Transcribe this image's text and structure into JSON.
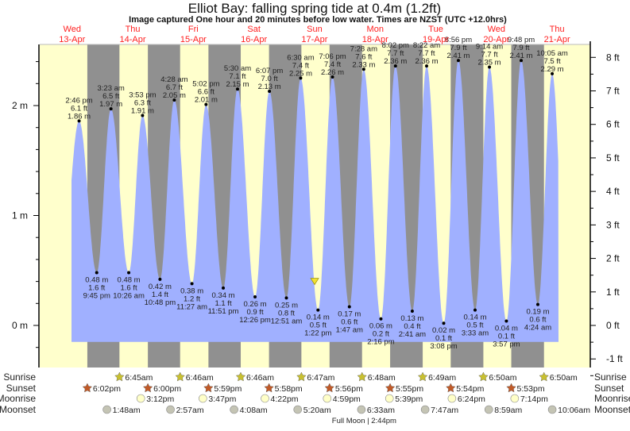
{
  "chart_data": {
    "type": "area",
    "title": "Elliot Bay: falling  spring tide at 0.4m (1.2ft)",
    "subtitle": "Image captured One hour and 20 minutes before low water. Times are NZST (UTC +12.0hrs)",
    "days": [
      {
        "dow": "Wed",
        "date": "13-Apr"
      },
      {
        "dow": "Thu",
        "date": "14-Apr"
      },
      {
        "dow": "Fri",
        "date": "15-Apr"
      },
      {
        "dow": "Sat",
        "date": "16-Apr"
      },
      {
        "dow": "Sun",
        "date": "17-Apr"
      },
      {
        "dow": "Mon",
        "date": "18-Apr"
      },
      {
        "dow": "Tue",
        "date": "19-Apr"
      },
      {
        "dow": "Wed",
        "date": "20-Apr"
      },
      {
        "dow": "Thu",
        "date": "21-Apr"
      }
    ],
    "left_axis": {
      "unit": "m",
      "ticks": [
        "0 m",
        "1 m",
        "2 m"
      ],
      "range_m": [
        -0.3,
        2.55
      ]
    },
    "right_axis": {
      "unit": "ft",
      "ticks": [
        "-1 ft",
        "0 ft",
        "1 ft",
        "2 ft",
        "3 ft",
        "4 ft",
        "5 ft",
        "6 ft",
        "7 ft",
        "8 ft"
      ]
    },
    "extremes": [
      {
        "day": 0,
        "time": "2:46 pm",
        "type": "high",
        "m": "1.86 m",
        "ft": "6.1 ft",
        "value_m": 1.86
      },
      {
        "day": 0,
        "time": "9:45 pm",
        "type": "low",
        "m": "0.48 m",
        "ft": "1.6 ft",
        "value_m": 0.48
      },
      {
        "day": 1,
        "time": "3:23 am",
        "type": "high",
        "m": "1.97 m",
        "ft": "6.5 ft",
        "value_m": 1.97
      },
      {
        "day": 1,
        "time": "10:26 am",
        "type": "low",
        "m": "0.48 m",
        "ft": "1.6 ft",
        "value_m": 0.48
      },
      {
        "day": 1,
        "time": "3:53 pm",
        "type": "high",
        "m": "1.91 m",
        "ft": "6.3 ft",
        "value_m": 1.91
      },
      {
        "day": 1,
        "time": "10:48 pm",
        "type": "low",
        "m": "0.42 m",
        "ft": "1.4 ft",
        "value_m": 0.42
      },
      {
        "day": 2,
        "time": "4:28 am",
        "type": "high",
        "m": "2.05 m",
        "ft": "6.7 ft",
        "value_m": 2.05
      },
      {
        "day": 2,
        "time": "11:27 am",
        "type": "low",
        "m": "0.38 m",
        "ft": "1.2 ft",
        "value_m": 0.38
      },
      {
        "day": 2,
        "time": "5:02 pm",
        "type": "high",
        "m": "2.01 m",
        "ft": "6.6 ft",
        "value_m": 2.01
      },
      {
        "day": 2,
        "time": "11:51 pm",
        "type": "low",
        "m": "0.34 m",
        "ft": "1.1 ft",
        "value_m": 0.34
      },
      {
        "day": 3,
        "time": "5:30 am",
        "type": "high",
        "m": "2.15 m",
        "ft": "7.1 ft",
        "value_m": 2.15
      },
      {
        "day": 3,
        "time": "12:26 pm",
        "type": "low",
        "m": "0.26 m",
        "ft": "0.9 ft",
        "value_m": 0.26
      },
      {
        "day": 3,
        "time": "6:07 pm",
        "type": "high",
        "m": "2.13 m",
        "ft": "7.0 ft",
        "value_m": 2.13
      },
      {
        "day": 4,
        "time": "12:51 am",
        "type": "low",
        "m": "0.25 m",
        "ft": "0.8 ft",
        "value_m": 0.25
      },
      {
        "day": 4,
        "time": "6:30 am",
        "type": "high",
        "m": "2.25 m",
        "ft": "7.4 ft",
        "value_m": 2.25
      },
      {
        "day": 4,
        "time": "1:22 pm",
        "type": "low",
        "m": "0.14 m",
        "ft": "0.5 ft",
        "value_m": 0.14
      },
      {
        "day": 4,
        "time": "7:06 pm",
        "type": "high",
        "m": "2.26 m",
        "ft": "7.4 ft",
        "value_m": 2.26
      },
      {
        "day": 5,
        "time": "1:47 am",
        "type": "low",
        "m": "0.17 m",
        "ft": "0.6 ft",
        "value_m": 0.17
      },
      {
        "day": 5,
        "time": "7:28 am",
        "type": "high",
        "m": "2.33 m",
        "ft": "7.6 ft",
        "value_m": 2.33
      },
      {
        "day": 5,
        "time": "2:16 pm",
        "type": "low",
        "m": "0.06 m",
        "ft": "0.2 ft",
        "value_m": 0.06
      },
      {
        "day": 5,
        "time": "8:02 pm",
        "type": "high",
        "m": "2.36 m",
        "ft": "7.7 ft",
        "value_m": 2.36
      },
      {
        "day": 6,
        "time": "2:41 am",
        "type": "low",
        "m": "0.13 m",
        "ft": "0.4 ft",
        "value_m": 0.13
      },
      {
        "day": 6,
        "time": "8:22 am",
        "type": "high",
        "m": "2.36 m",
        "ft": "7.7 ft",
        "value_m": 2.36
      },
      {
        "day": 6,
        "time": "3:08 pm",
        "type": "low",
        "m": "0.02 m",
        "ft": "0.1 ft",
        "value_m": 0.02
      },
      {
        "day": 6,
        "time": "8:56 pm",
        "type": "high",
        "m": "2.41 m",
        "ft": "7.9 ft",
        "value_m": 2.41
      },
      {
        "day": 7,
        "time": "3:33 am",
        "type": "low",
        "m": "0.14 m",
        "ft": "0.5 ft",
        "value_m": 0.14
      },
      {
        "day": 7,
        "time": "9:14 am",
        "type": "high",
        "m": "2.35 m",
        "ft": "7.7 ft",
        "value_m": 2.35
      },
      {
        "day": 7,
        "time": "3:57 pm",
        "type": "low",
        "m": "0.04 m",
        "ft": "0.1 ft",
        "value_m": 0.04
      },
      {
        "day": 7,
        "time": "9:48 pm",
        "type": "high",
        "m": "2.41 m",
        "ft": "7.9 ft",
        "value_m": 2.41
      },
      {
        "day": 8,
        "time": "4:24 am",
        "type": "low",
        "m": "0.19 m",
        "ft": "0.6 ft",
        "value_m": 0.19
      },
      {
        "day": 8,
        "time": "10:05 am",
        "type": "high",
        "m": "2.29 m",
        "ft": "7.5 ft",
        "value_m": 2.29
      }
    ],
    "current": {
      "day": 4,
      "time": "12:02 pm",
      "value_m": 0.4
    },
    "rows": {
      "sunrise": {
        "label": "Sunrise",
        "color": "#c8c030",
        "items": [
          {
            "day": 1,
            "time": "6:45am"
          },
          {
            "day": 2,
            "time": "6:46am"
          },
          {
            "day": 3,
            "time": "6:46am"
          },
          {
            "day": 4,
            "time": "6:47am"
          },
          {
            "day": 5,
            "time": "6:48am"
          },
          {
            "day": 6,
            "time": "6:49am"
          },
          {
            "day": 7,
            "time": "6:50am"
          },
          {
            "day": 8,
            "time": "6:50am"
          }
        ]
      },
      "sunset": {
        "label": "Sunset",
        "color": "#c05a28",
        "items": [
          {
            "day": 0,
            "time": "6:02pm"
          },
          {
            "day": 1,
            "time": "6:00pm"
          },
          {
            "day": 2,
            "time": "5:59pm"
          },
          {
            "day": 3,
            "time": "5:58pm"
          },
          {
            "day": 4,
            "time": "5:56pm"
          },
          {
            "day": 5,
            "time": "5:55pm"
          },
          {
            "day": 6,
            "time": "5:54pm"
          },
          {
            "day": 7,
            "time": "5:53pm"
          }
        ]
      },
      "moonrise": {
        "label": "Moonrise",
        "color": "#ffffc8",
        "items": [
          {
            "day": 1,
            "time": "3:12pm"
          },
          {
            "day": 2,
            "time": "3:47pm"
          },
          {
            "day": 3,
            "time": "4:22pm"
          },
          {
            "day": 4,
            "time": "4:59pm"
          },
          {
            "day": 5,
            "time": "5:39pm"
          },
          {
            "day": 6,
            "time": "6:24pm"
          },
          {
            "day": 7,
            "time": "7:14pm"
          }
        ]
      },
      "moonset": {
        "label": "Moonset",
        "color": "#c4c4b4",
        "items": [
          {
            "day": 1,
            "time": "1:48am"
          },
          {
            "day": 2,
            "time": "2:57am"
          },
          {
            "day": 3,
            "time": "4:08am"
          },
          {
            "day": 4,
            "time": "5:20am"
          },
          {
            "day": 5,
            "time": "6:33am"
          },
          {
            "day": 6,
            "time": "7:47am"
          },
          {
            "day": 7,
            "time": "8:59am"
          },
          {
            "day": 8,
            "time": "10:06am"
          }
        ]
      }
    },
    "moon_phase": {
      "label": "Full Moon | 2:44pm",
      "day": 5,
      "time": "2:44pm"
    },
    "colors": {
      "day": "#ffffcc",
      "night": "#909090",
      "water": "#a0b0ff",
      "day_label": "#ff2020",
      "marker": "#f0e030"
    }
  }
}
